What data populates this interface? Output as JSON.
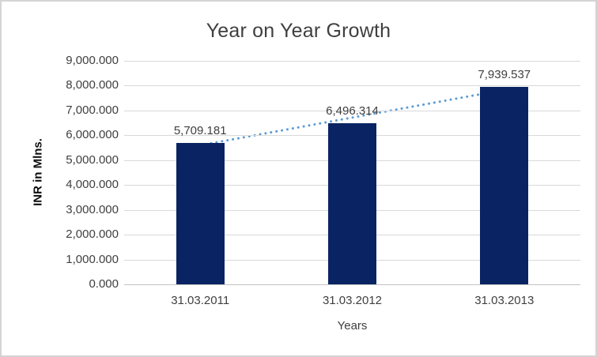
{
  "chart_data": {
    "type": "bar",
    "title": "Year on Year Growth",
    "xlabel": "Years",
    "ylabel": "INR in Mlns.",
    "categories": [
      "31.03.2011",
      "31.03.2012",
      "31.03.2013"
    ],
    "values": [
      5709.181,
      6496.314,
      7939.537
    ],
    "data_labels": [
      "5,709.181",
      "6,496.314",
      "7,939.537"
    ],
    "ylim": [
      0,
      9000
    ],
    "ytick_step": 1000,
    "ytick_labels": [
      "0.000",
      "1,000.000",
      "2,000.000",
      "3,000.000",
      "4,000.000",
      "5,000.000",
      "6,000.000",
      "7,000.000",
      "8,000.000",
      "9,000.000"
    ],
    "grid": "horizontal",
    "legend_position": "none",
    "trendline": {
      "type": "linear",
      "style": "dotted"
    },
    "colors": {
      "bar": "#0a2463",
      "trendline": "#5b9bd5",
      "gridline": "#d9d9d9",
      "axis_text": "#3f3f3f",
      "title_text": "#3f3f3f",
      "frame_border": "#d4d4d4",
      "background": "#ffffff"
    }
  }
}
